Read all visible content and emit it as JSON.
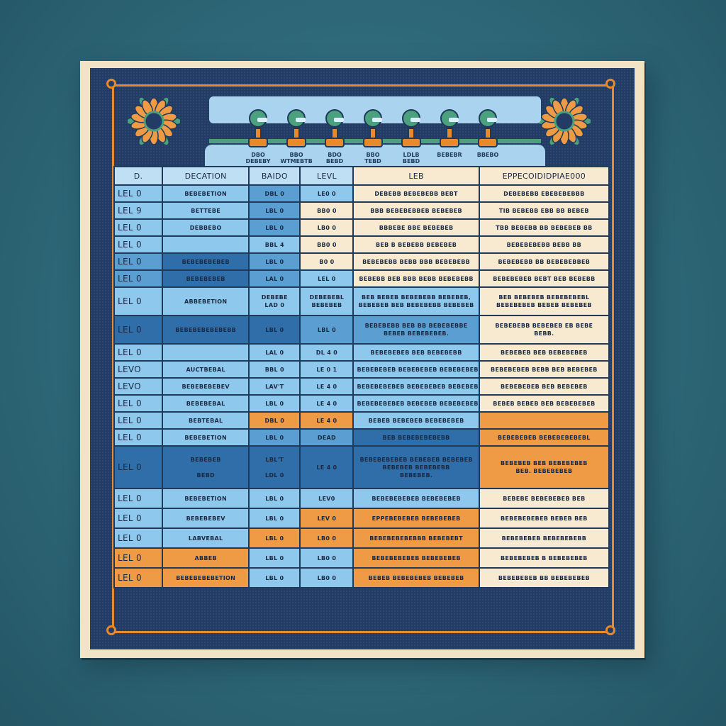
{
  "colors": {
    "background": "#2e6878",
    "board": "#f1e3c6",
    "border": "#223c66",
    "accent": "#e8892c",
    "light_blue": "#8ec8ec",
    "medium_blue": "#5b9fd2",
    "dark_blue": "#2f6ea8",
    "cream": "#f7ead0",
    "orange": "#ef9a45"
  },
  "icons": [
    "sunflower-icon",
    "sunflower-icon"
  ],
  "banner": {
    "labels": [
      "DBO\nDEBEBY",
      "BBO\nWTMEBTB",
      "BDO\nBEBD",
      "BBO\nTEBD",
      "LDLB\nBEBD",
      "BEBEBR",
      "BBEBO"
    ]
  },
  "table": {
    "headers": [
      "D.",
      "DECATION",
      "BAIDO",
      "LEVL",
      "LEB",
      "EPPECOIDIDPIAE000"
    ],
    "rows": [
      {
        "cells": [
          "LEL 0",
          "BEBEBETION",
          "DBL 0",
          "LE0 0",
          "DEBEBB BEBEBEBB BEBT",
          "DEBEBEBB EBEBEBEBBB"
        ],
        "colors": [
          "lb",
          "lb",
          "mb",
          "lb",
          "cr",
          "cr"
        ]
      },
      {
        "cells": [
          "LEL 9",
          "BETTEBE",
          "LBL 0",
          "BB0 0",
          "BBB BEBEBEBBEB BEBEBEB",
          "TIB BEBEBB EBB BB BEBEB"
        ],
        "colors": [
          "lb",
          "lb",
          "mb",
          "cr",
          "cr",
          "cr"
        ]
      },
      {
        "cells": [
          "LEL 0",
          "DEBBEBO",
          "LBL 0",
          "LB0 0",
          "BBBEBE BBE BEBEBEB",
          "TBB BEBEBB BB BEBEBEB BB"
        ],
        "colors": [
          "lb",
          "lb",
          "mb",
          "cr",
          "cr",
          "cr"
        ]
      },
      {
        "cells": [
          "LEL 0",
          "",
          "BBL 4",
          "BB0 0",
          "BEB B BEBEBB BEBEBEB",
          "BEBEBEBEBB BEBB BB"
        ],
        "colors": [
          "lb",
          "lb",
          "lb",
          "cr",
          "cr",
          "cr"
        ]
      },
      {
        "cells": [
          "LEL 0",
          "BEBEBEBEBEB",
          "LBL 0",
          "B0 0",
          "BEBEBEBB BEBB BBB BEBEBEBB",
          "BEBEBEBB BB BEBEBEBBEB"
        ],
        "colors": [
          "mb",
          "db",
          "mb",
          "cr",
          "cr",
          "cr"
        ]
      },
      {
        "cells": [
          "LEL 0",
          "BEBEBEBEB",
          "LAL 0",
          "LEL 0",
          "BEBEBB BEB BBB BEBB BEBEBEBB",
          "BEBEBEBEB BEBT BEB BEBEBB"
        ],
        "colors": [
          "mb",
          "db",
          "mb",
          "lb",
          "cr",
          "cr"
        ]
      },
      {
        "cells": [
          "LEL 0",
          "ABBEBETION",
          "DEBEBE\nLAD 0",
          "DEBEBEBL\nBEBEBEB",
          "BEB BEBEB BEBEBEBB BEBEBEB,\nBEBEBEB BEB BEBEBEBB BEBEBEB",
          "BEB BEBEBEB BEBEBEBEBL\nBEBEBEBEB BEBEB BEBEBEB"
        ],
        "colors": [
          "lb",
          "lb",
          "lb",
          "lb",
          "lb",
          "cr"
        ]
      },
      {
        "cells": [
          "LEL 0",
          "BEBEBEBEBEBEBB",
          "LBL 0",
          "LBL 0",
          "BEBEBEBB BEB BB BEBEBEBBE\nBEBEB BEBEBEBEB.",
          "BEBEBEBB BEBEBEB EB BEBE\nBEBB."
        ],
        "colors": [
          "db",
          "db",
          "db",
          "mb",
          "mb",
          "cr"
        ]
      },
      {
        "cells": [
          "LEL 0",
          "",
          "LAL 0",
          "DL 4 0",
          "BEBEBEBEB BEB BEBEBEBB",
          "BEBEBEB BEB BEBEBEBEB"
        ],
        "colors": [
          "lb",
          "lb",
          "lb",
          "lb",
          "lb",
          "cr"
        ]
      },
      {
        "cells": [
          "LEVO",
          "AUCTBEBAL",
          "BBL 0",
          "LE 0 1",
          "BEBEBEBEB BEBEBEBEB BEBEBEBEBL",
          "BEBEBEBEB BEBB BEB BEBEBEB"
        ],
        "colors": [
          "lb",
          "lb",
          "lb",
          "lb",
          "lb",
          "cr"
        ]
      },
      {
        "cells": [
          "LEVO",
          "BEBEBEBEBEV",
          "LAV'T",
          "LE 4 0",
          "BEBEBEBEBEB BEBEBEBEB BEBEBEB",
          "BEBEBEBEB BEB BEBEBEB"
        ],
        "colors": [
          "lb",
          "lb",
          "lb",
          "lb",
          "lb",
          "cr"
        ]
      },
      {
        "cells": [
          "LEL 0",
          "BEBEBEBAL",
          "LBL 0",
          "LE 4 0",
          "BEBEBEBEBEB BEBEBEB BEBEBEBEB",
          "BEBEB BEBEB BEB BEBEBEBEB"
        ],
        "colors": [
          "lb",
          "lb",
          "lb",
          "lb",
          "lb",
          "cr"
        ]
      },
      {
        "cells": [
          "LEL 0",
          "BEBTEBAL",
          "DBL 0",
          "LE 4 0",
          "BEBEB BEBEBEB BEBEBEBEB",
          ""
        ],
        "colors": [
          "lb",
          "lb",
          "or",
          "or",
          "lb",
          "or"
        ]
      },
      {
        "cells": [
          "LEL 0",
          "BEBEBETION",
          "LBL 0",
          "DEAD",
          "BEB BEBEBEBEBEBB",
          "BEBEBEBEB BEBEBEBEBEBL"
        ],
        "colors": [
          "lb",
          "lb",
          "mb",
          "mb",
          "db",
          "or"
        ]
      },
      {
        "cells": [
          "LEL 0",
          "BEBEBEB\n\nBEBD",
          "LBL'T\n\nLDL 0",
          "LE 4 0",
          "BEBEBEBEBEB BEBEBEB BEBEBEB\nBEBEBEB BEBEBEBB\nBEBEBEB.",
          "BEBEBEB BEB BEBEBEBEB\nBEB. BEBEBEBEB"
        ],
        "colors": [
          "db",
          "db",
          "db",
          "db",
          "db",
          "or"
        ]
      },
      {
        "cells": [
          "LEL 0",
          "BEBEBETION",
          "LBL 0",
          "LEV0",
          "BEBEBEBEBEB BEBEBEBEB",
          "BEBEBE BEBEBEBEB BEB"
        ],
        "colors": [
          "lb",
          "lb",
          "lb",
          "lb",
          "lb",
          "cr"
        ]
      },
      {
        "cells": [
          "LEL 0",
          "BEBEBEBEV",
          "LBL 0",
          "LEV 0",
          "EPPEBEBEBEB BEBEBEBEB",
          "BEBEBEBEBEB BEBEB BEB"
        ],
        "colors": [
          "lb",
          "lb",
          "lb",
          "or",
          "or",
          "cr"
        ]
      },
      {
        "cells": [
          "LEL 0",
          "LABVEBAL",
          "LBL 0",
          "LB0 0",
          "BEBEBEBEBEBBB BEBEBEBT",
          "BEBEBEBEB BEBEBEBEBB"
        ],
        "colors": [
          "lb",
          "lb",
          "or",
          "or",
          "or",
          "cr"
        ]
      },
      {
        "cells": [
          "LEL 0",
          "ABBEB",
          "LBL 0",
          "LB0 0",
          "BEBEBEBEBEB BEBEBEBEB",
          "BEBEBEBEB B BEBEBEBEB"
        ],
        "colors": [
          "or",
          "or",
          "lb",
          "lb",
          "or",
          "cr"
        ]
      },
      {
        "cells": [
          "LEL 0",
          "BEBEBEBEBETION",
          "LBL 0",
          "LB0 0",
          "BEBEB BEBEBEBEB BEBEBEB",
          "BEBEBEBEB BB BEBEBEBEB"
        ],
        "colors": [
          "or",
          "or",
          "lb",
          "lb",
          "or",
          "cr"
        ]
      }
    ]
  }
}
